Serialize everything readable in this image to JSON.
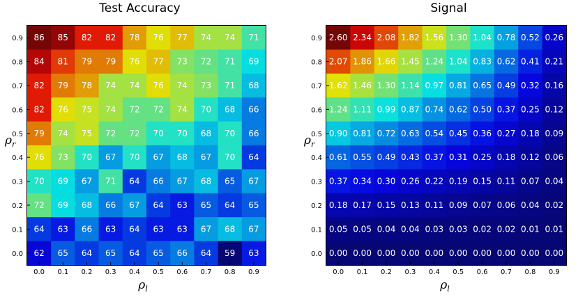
{
  "chart_data": [
    {
      "type": "heatmap",
      "title": "Test Accuracy",
      "xlabel": "ρ",
      "xlabel_sub": "l",
      "ylabel": "ρ",
      "ylabel_sub": "r",
      "x_ticks": [
        "0.0",
        "0.1",
        "0.2",
        "0.3",
        "0.4",
        "0.5",
        "0.6",
        "0.7",
        "0.8",
        "0.9"
      ],
      "y_ticks": [
        "0.0",
        "0.1",
        "0.2",
        "0.3",
        "0.4",
        "0.5",
        "0.6",
        "0.7",
        "0.8",
        "0.9"
      ],
      "colormap": "jet",
      "value_range": [
        59,
        86
      ],
      "rows_top_to_bottom_y": [
        "0.9",
        "0.8",
        "0.7",
        "0.6",
        "0.5",
        "0.4",
        "0.3",
        "0.2",
        "0.1",
        "0.0"
      ],
      "values": [
        [
          "86",
          "85",
          "82",
          "82",
          "78",
          "76",
          "77",
          "74",
          "74",
          "71"
        ],
        [
          "84",
          "81",
          "79",
          "79",
          "76",
          "77",
          "73",
          "72",
          "71",
          "69"
        ],
        [
          "82",
          "79",
          "78",
          "74",
          "74",
          "76",
          "74",
          "73",
          "71",
          "68"
        ],
        [
          "82",
          "76",
          "75",
          "74",
          "72",
          "72",
          "74",
          "70",
          "68",
          "66"
        ],
        [
          "79",
          "74",
          "75",
          "72",
          "72",
          "70",
          "70",
          "68",
          "70",
          "66"
        ],
        [
          "76",
          "73",
          "70",
          "67",
          "70",
          "67",
          "68",
          "67",
          "70",
          "64"
        ],
        [
          "70",
          "69",
          "67",
          "71",
          "64",
          "66",
          "67",
          "68",
          "65",
          "67"
        ],
        [
          "72",
          "69",
          "68",
          "66",
          "67",
          "64",
          "63",
          "65",
          "64",
          "65"
        ],
        [
          "64",
          "63",
          "66",
          "63",
          "64",
          "63",
          "63",
          "67",
          "68",
          "67"
        ],
        [
          "62",
          "65",
          "64",
          "65",
          "64",
          "65",
          "66",
          "64",
          "59",
          "63"
        ]
      ]
    },
    {
      "type": "heatmap",
      "title": "Signal",
      "xlabel": "ρ",
      "xlabel_sub": "l",
      "ylabel": "ρ",
      "ylabel_sub": "r",
      "x_ticks": [
        "0.0",
        "0.1",
        "0.2",
        "0.3",
        "0.4",
        "0.5",
        "0.6",
        "0.7",
        "0.8",
        "0.9"
      ],
      "y_ticks": [
        "0.0",
        "0.1",
        "0.2",
        "0.3",
        "0.4",
        "0.5",
        "0.6",
        "0.7",
        "0.8",
        "0.9"
      ],
      "colormap": "jet",
      "value_range": [
        0,
        2.6
      ],
      "rows_top_to_bottom_y": [
        "0.9",
        "0.8",
        "0.7",
        "0.6",
        "0.5",
        "0.4",
        "0.3",
        "0.2",
        "0.1",
        "0.0"
      ],
      "values": [
        [
          "2.60",
          "2.34",
          "2.08",
          "1.82",
          "1.56",
          "1.30",
          "1.04",
          "0.78",
          "0.52",
          "0.26"
        ],
        [
          "2.07",
          "1.86",
          "1.66",
          "1.45",
          "1.24",
          "1.04",
          "0.83",
          "0.62",
          "0.41",
          "0.21"
        ],
        [
          "1.62",
          "1.46",
          "1.30",
          "1.14",
          "0.97",
          "0.81",
          "0.65",
          "0.49",
          "0.32",
          "0.16"
        ],
        [
          "1.24",
          "1.11",
          "0.99",
          "0.87",
          "0.74",
          "0.62",
          "0.50",
          "0.37",
          "0.25",
          "0.12"
        ],
        [
          "0.90",
          "0.81",
          "0.72",
          "0.63",
          "0.54",
          "0.45",
          "0.36",
          "0.27",
          "0.18",
          "0.09"
        ],
        [
          "0.61",
          "0.55",
          "0.49",
          "0.43",
          "0.37",
          "0.31",
          "0.25",
          "0.18",
          "0.12",
          "0.06"
        ],
        [
          "0.37",
          "0.34",
          "0.30",
          "0.26",
          "0.22",
          "0.19",
          "0.15",
          "0.11",
          "0.07",
          "0.04"
        ],
        [
          "0.18",
          "0.17",
          "0.15",
          "0.13",
          "0.11",
          "0.09",
          "0.07",
          "0.06",
          "0.04",
          "0.02"
        ],
        [
          "0.05",
          "0.05",
          "0.04",
          "0.04",
          "0.03",
          "0.03",
          "0.02",
          "0.02",
          "0.01",
          "0.01"
        ],
        [
          "0.00",
          "0.00",
          "0.00",
          "0.00",
          "0.00",
          "0.00",
          "0.00",
          "0.00",
          "0.00",
          "0.00"
        ]
      ]
    }
  ]
}
